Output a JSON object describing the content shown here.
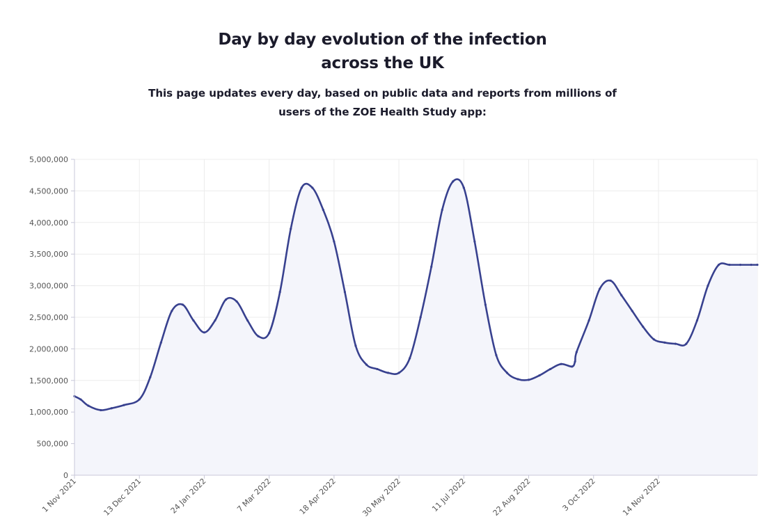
{
  "header": {
    "title_line1": "Day by day evolution of the infection",
    "title_line2": "across the UK",
    "subtitle_line1": "This page updates every day, based on public data and reports from millions of",
    "subtitle_line2": "users of the ZOE Health Study app:"
  },
  "colors": {
    "line": "#38418f",
    "fill": "#f4f5fb",
    "grid": "#ececec",
    "axis": "#c8c8d8"
  },
  "chart_data": {
    "type": "area",
    "title": "",
    "xlabel": "",
    "ylabel": "",
    "ylim": [
      0,
      5000000
    ],
    "xlim": [
      "2021-11-01",
      "2023-01-17"
    ],
    "grid": true,
    "y_ticks": [
      0,
      500000,
      1000000,
      1500000,
      2000000,
      2500000,
      3000000,
      3500000,
      4000000,
      4500000,
      5000000
    ],
    "y_tick_labels": [
      "0",
      "500,000",
      "1,000,000",
      "1,500,000",
      "2,000,000",
      "2,500,000",
      "3,000,000",
      "3,500,000",
      "4,000,000",
      "4,500,000",
      "5,000,000"
    ],
    "x_ticks": [
      "2021-11-01",
      "2021-12-13",
      "2022-01-24",
      "2022-03-07",
      "2022-04-18",
      "2022-05-30",
      "2022-07-11",
      "2022-08-22",
      "2022-10-03",
      "2022-11-14"
    ],
    "x_tick_labels": [
      "1 Nov 2021",
      "13 Dec 2021",
      "24 Jan 2022",
      "7 Mar 2022",
      "18 Apr 2022",
      "30 May 2022",
      "11 Jul 2022",
      "22 Aug 2022",
      "3 Oct 2022",
      "14 Nov 2022"
    ],
    "series": [
      {
        "x": [
          "2021-11-01",
          "2021-11-05",
          "2021-11-10",
          "2021-11-18",
          "2021-11-25",
          "2021-12-03",
          "2021-12-13",
          "2021-12-20",
          "2021-12-27",
          "2022-01-03",
          "2022-01-10",
          "2022-01-17",
          "2022-01-24",
          "2022-01-31",
          "2022-02-07",
          "2022-02-14",
          "2022-02-21",
          "2022-02-28",
          "2022-03-07",
          "2022-03-14",
          "2022-03-21",
          "2022-03-28",
          "2022-04-04",
          "2022-04-11",
          "2022-04-18",
          "2022-04-25",
          "2022-05-02",
          "2022-05-09",
          "2022-05-16",
          "2022-05-23",
          "2022-05-30",
          "2022-06-06",
          "2022-06-13",
          "2022-06-20",
          "2022-06-27",
          "2022-07-04",
          "2022-07-11",
          "2022-07-18",
          "2022-07-25",
          "2022-08-01",
          "2022-08-08",
          "2022-08-15",
          "2022-08-22",
          "2022-08-29",
          "2022-09-05",
          "2022-09-12",
          "2022-09-19",
          "2022-09-21",
          "2022-09-22",
          "2022-09-30",
          "2022-10-07",
          "2022-10-14",
          "2022-10-21",
          "2022-10-28",
          "2022-11-04",
          "2022-11-11",
          "2022-11-18",
          "2022-11-25",
          "2022-12-02",
          "2022-12-09",
          "2022-12-16",
          "2022-12-23",
          "2022-12-30",
          "2023-01-06",
          "2023-01-13",
          "2023-01-17"
        ],
        "y": [
          1250000,
          1200000,
          1100000,
          1030000,
          1060000,
          1110000,
          1200000,
          1550000,
          2100000,
          2600000,
          2700000,
          2450000,
          2260000,
          2450000,
          2780000,
          2750000,
          2450000,
          2200000,
          2250000,
          2900000,
          3900000,
          4550000,
          4550000,
          4200000,
          3700000,
          2900000,
          2050000,
          1750000,
          1680000,
          1620000,
          1620000,
          1850000,
          2500000,
          3300000,
          4200000,
          4650000,
          4550000,
          3700000,
          2700000,
          1900000,
          1620000,
          1520000,
          1510000,
          1580000,
          1680000,
          1760000,
          1720000,
          1800000,
          1950000,
          2450000,
          2950000,
          3080000,
          2850000,
          2600000,
          2350000,
          2150000,
          2100000,
          2080000,
          2080000,
          2450000,
          3000000,
          3330000,
          3330000,
          3330000,
          3330000,
          3330000
        ]
      }
    ]
  }
}
